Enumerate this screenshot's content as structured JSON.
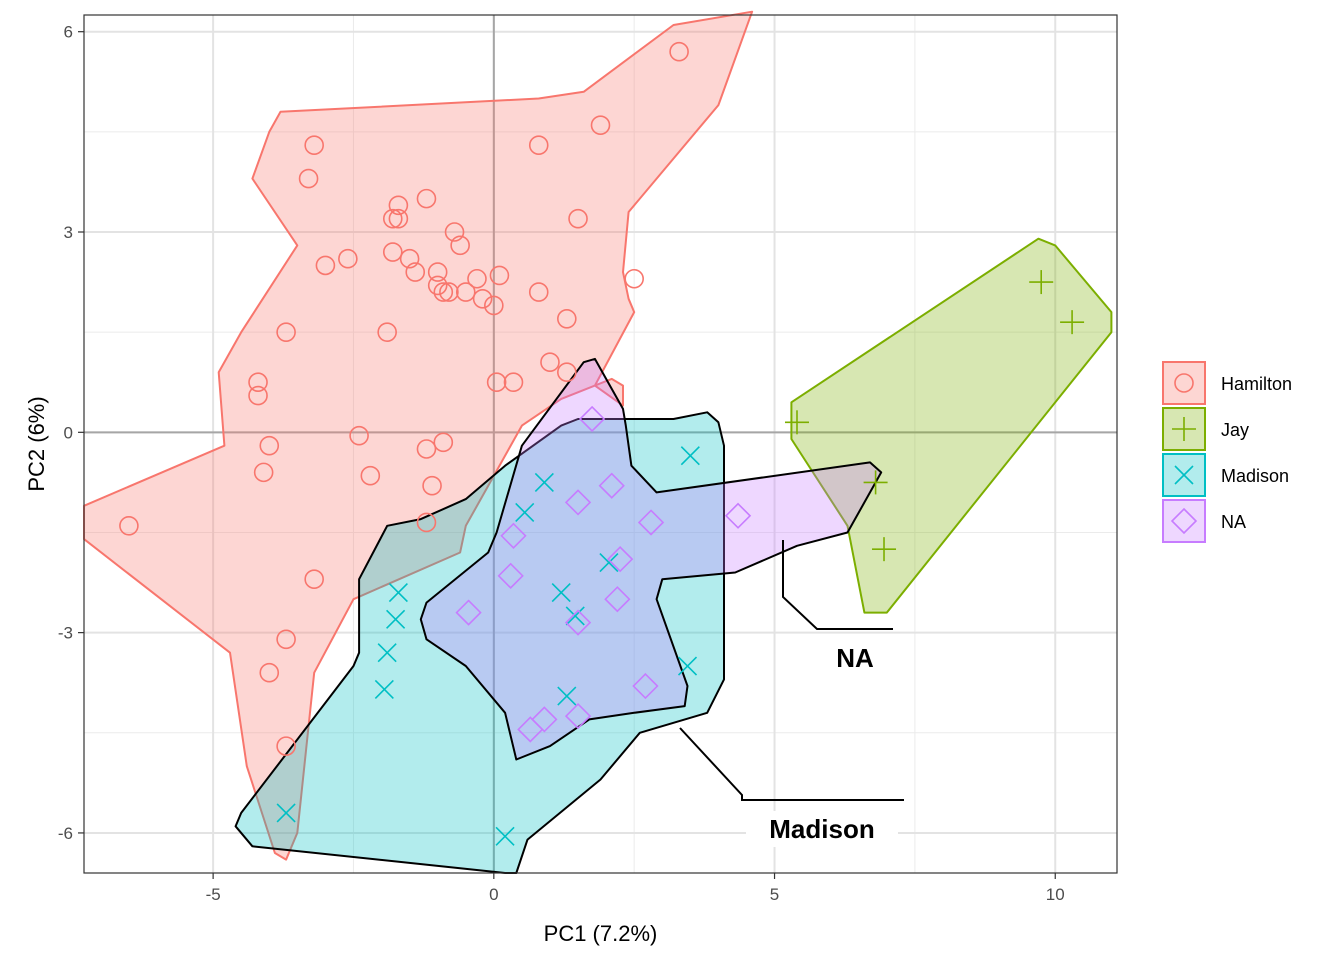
{
  "chart_data": {
    "type": "scatter",
    "xlabel": "PC1 (7.2%)",
    "ylabel": "PC2 (6%)",
    "xlim": [
      -7.3,
      11.1
    ],
    "ylim": [
      -6.6,
      6.25
    ],
    "x_ticks": [
      -5,
      0,
      5,
      10
    ],
    "x_tick_labels": [
      "-5",
      "0",
      "5",
      "10"
    ],
    "y_ticks": [
      -6,
      -3,
      0,
      3,
      6
    ],
    "y_tick_labels": [
      "-6",
      "-3",
      "0",
      "3",
      "6"
    ],
    "grid": true,
    "zero_lines": true,
    "legend_position": "right",
    "annotations": [
      "NA",
      "Madison"
    ],
    "series": [
      {
        "name": "Hamilton",
        "color": "#F8766D",
        "shape": "circle",
        "hull": [
          [
            -7.3,
            -1.1
          ],
          [
            -7.3,
            -1.6
          ],
          [
            -4.7,
            -3.3
          ],
          [
            -4.4,
            -5.0
          ],
          [
            -3.9,
            -6.3
          ],
          [
            -3.7,
            -6.4
          ],
          [
            -3.5,
            -6.0
          ],
          [
            -3.2,
            -3.6
          ],
          [
            -2.5,
            -2.5
          ],
          [
            -0.6,
            -1.8
          ],
          [
            -0.5,
            -1.4
          ],
          [
            0.5,
            0.1
          ],
          [
            1.2,
            0.5
          ],
          [
            2.1,
            0.8
          ],
          [
            2.3,
            0.7
          ],
          [
            2.3,
            0.4
          ],
          [
            1.8,
            0.7
          ],
          [
            2.5,
            1.8
          ],
          [
            2.4,
            2.0
          ],
          [
            2.3,
            2.4
          ],
          [
            2.4,
            3.3
          ],
          [
            4.0,
            4.9
          ],
          [
            4.6,
            6.3
          ],
          [
            3.2,
            6.1
          ],
          [
            1.6,
            5.1
          ],
          [
            0.8,
            5.0
          ],
          [
            -3.8,
            4.8
          ],
          [
            -4.0,
            4.5
          ],
          [
            -4.3,
            3.8
          ],
          [
            -3.5,
            2.8
          ],
          [
            -4.5,
            1.5
          ],
          [
            -4.9,
            0.9
          ],
          [
            -4.8,
            -0.2
          ]
        ],
        "points": [
          [
            -6.5,
            -1.4
          ],
          [
            3.3,
            5.7
          ],
          [
            1.9,
            4.6
          ],
          [
            0.8,
            4.3
          ],
          [
            -3.2,
            4.3
          ],
          [
            -3.3,
            3.8
          ],
          [
            -1.2,
            3.5
          ],
          [
            -1.7,
            3.4
          ],
          [
            -1.7,
            3.2
          ],
          [
            -1.8,
            3.2
          ],
          [
            -0.7,
            3.0
          ],
          [
            1.5,
            3.2
          ],
          [
            -0.6,
            2.8
          ],
          [
            -1.8,
            2.7
          ],
          [
            -1.5,
            2.6
          ],
          [
            -2.6,
            2.6
          ],
          [
            -3.0,
            2.5
          ],
          [
            -1.0,
            2.4
          ],
          [
            -1.4,
            2.4
          ],
          [
            -0.3,
            2.3
          ],
          [
            0.1,
            2.35
          ],
          [
            2.5,
            2.3
          ],
          [
            -1.0,
            2.2
          ],
          [
            -0.9,
            2.1
          ],
          [
            -0.8,
            2.1
          ],
          [
            -0.5,
            2.1
          ],
          [
            -0.2,
            2.0
          ],
          [
            0.0,
            1.9
          ],
          [
            0.8,
            2.1
          ],
          [
            1.3,
            1.7
          ],
          [
            -3.7,
            1.5
          ],
          [
            -1.9,
            1.5
          ],
          [
            1.0,
            1.05
          ],
          [
            1.3,
            0.9
          ],
          [
            0.05,
            0.75
          ],
          [
            0.35,
            0.75
          ],
          [
            -4.2,
            0.75
          ],
          [
            -4.2,
            0.55
          ],
          [
            -2.4,
            -0.05
          ],
          [
            -0.9,
            -0.15
          ],
          [
            -4.0,
            -0.2
          ],
          [
            -1.2,
            -0.25
          ],
          [
            -4.1,
            -0.6
          ],
          [
            -2.2,
            -0.65
          ],
          [
            -1.1,
            -0.8
          ],
          [
            -1.2,
            -1.35
          ],
          [
            -3.2,
            -2.2
          ],
          [
            -3.7,
            -3.1
          ],
          [
            -4.0,
            -3.6
          ],
          [
            -3.7,
            -4.7
          ]
        ]
      },
      {
        "name": "Jay",
        "color": "#7CAE00",
        "shape": "plus",
        "hull": [
          [
            5.3,
            0.45
          ],
          [
            9.7,
            2.9
          ],
          [
            10.0,
            2.8
          ],
          [
            11.0,
            1.8
          ],
          [
            11.0,
            1.5
          ],
          [
            7.0,
            -2.7
          ],
          [
            6.6,
            -2.7
          ],
          [
            6.3,
            -1.4
          ],
          [
            5.3,
            -0.1
          ]
        ],
        "points": [
          [
            5.4,
            0.15
          ],
          [
            9.75,
            2.25
          ],
          [
            10.3,
            1.65
          ],
          [
            6.8,
            -0.75
          ],
          [
            6.95,
            -1.75
          ]
        ]
      },
      {
        "name": "Madison",
        "color": "#00BFC4",
        "shape": "x",
        "hull": [
          [
            -4.6,
            -5.9
          ],
          [
            -4.5,
            -5.7
          ],
          [
            -2.5,
            -3.5
          ],
          [
            -2.4,
            -3.3
          ],
          [
            -2.4,
            -2.2
          ],
          [
            -1.9,
            -1.4
          ],
          [
            -1.3,
            -1.3
          ],
          [
            -0.5,
            -1.0
          ],
          [
            0.2,
            -0.5
          ],
          [
            1.2,
            0.1
          ],
          [
            1.5,
            0.2
          ],
          [
            3.2,
            0.2
          ],
          [
            3.8,
            0.3
          ],
          [
            4.0,
            0.15
          ],
          [
            4.1,
            -0.2
          ],
          [
            4.1,
            -3.7
          ],
          [
            3.8,
            -4.2
          ],
          [
            2.6,
            -4.5
          ],
          [
            1.9,
            -5.2
          ],
          [
            0.6,
            -6.1
          ],
          [
            0.4,
            -6.6
          ],
          [
            0.2,
            -6.6
          ],
          [
            -4.3,
            -6.2
          ]
        ],
        "points": [
          [
            -3.7,
            -5.7
          ],
          [
            -1.7,
            -2.4
          ],
          [
            -1.75,
            -2.8
          ],
          [
            -1.9,
            -3.3
          ],
          [
            -1.95,
            -3.85
          ],
          [
            0.2,
            -6.05
          ],
          [
            0.9,
            -0.75
          ],
          [
            0.55,
            -1.2
          ],
          [
            1.2,
            -2.4
          ],
          [
            2.05,
            -1.95
          ],
          [
            1.45,
            -2.75
          ],
          [
            1.3,
            -3.95
          ],
          [
            3.5,
            -0.35
          ],
          [
            3.45,
            -3.5
          ]
        ]
      },
      {
        "name": "NA",
        "color": "#C77CFF",
        "shape": "diamond",
        "hull": [
          [
            0.4,
            -4.9
          ],
          [
            1.0,
            -4.7
          ],
          [
            1.7,
            -4.3
          ],
          [
            2.5,
            -4.2
          ],
          [
            3.4,
            -4.1
          ],
          [
            3.45,
            -3.8
          ],
          [
            2.9,
            -2.5
          ],
          [
            3.0,
            -2.2
          ],
          [
            4.3,
            -2.1
          ],
          [
            5.4,
            -1.7
          ],
          [
            6.3,
            -1.5
          ],
          [
            6.6,
            -1.05
          ],
          [
            6.9,
            -0.6
          ],
          [
            6.7,
            -0.45
          ],
          [
            2.9,
            -0.9
          ],
          [
            2.45,
            -0.5
          ],
          [
            2.35,
            0.1
          ],
          [
            2.3,
            0.35
          ],
          [
            1.8,
            1.1
          ],
          [
            1.6,
            1.05
          ],
          [
            0.5,
            -0.2
          ],
          [
            0.05,
            -1.5
          ],
          [
            -0.1,
            -1.8
          ],
          [
            -1.2,
            -2.55
          ],
          [
            -1.3,
            -2.8
          ],
          [
            -1.2,
            -3.1
          ],
          [
            -0.5,
            -3.5
          ],
          [
            0.2,
            -4.2
          ]
        ],
        "points": [
          [
            1.75,
            0.2
          ],
          [
            1.5,
            -1.05
          ],
          [
            2.1,
            -0.8
          ],
          [
            -0.45,
            -2.7
          ],
          [
            0.35,
            -1.55
          ],
          [
            0.3,
            -2.15
          ],
          [
            2.25,
            -1.9
          ],
          [
            2.2,
            -2.5
          ],
          [
            1.5,
            -2.85
          ],
          [
            2.8,
            -1.35
          ],
          [
            4.35,
            -1.25
          ],
          [
            2.7,
            -3.8
          ],
          [
            1.5,
            -4.25
          ],
          [
            0.9,
            -4.3
          ],
          [
            0.65,
            -4.45
          ]
        ]
      }
    ]
  }
}
